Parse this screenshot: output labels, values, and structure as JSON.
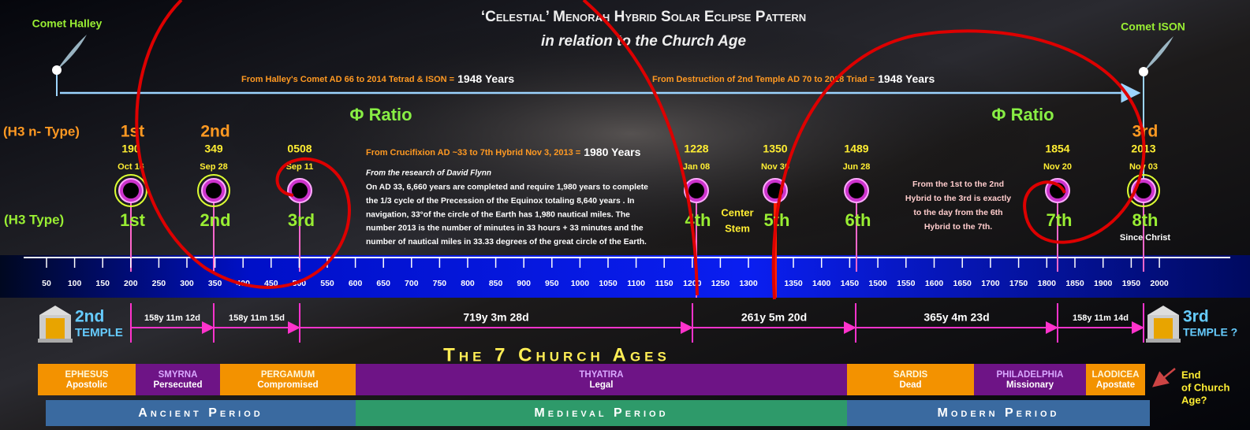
{
  "header": {
    "title": "‘Celestial’ Menorah Hybrid Solar Eclipse Pattern",
    "subtitle": "in relation to the Church Age"
  },
  "comets": [
    "Comet Halley",
    "Comet ISON"
  ],
  "spans": [
    {
      "text": "From Halley's Comet AD 66 to 2014 Tetrad & ISON =",
      "years": "1948 Years"
    },
    {
      "text": "From Destruction of 2nd Temple AD 70 to 2018 Triad =",
      "years": "1948 Years"
    }
  ],
  "phi_labels": [
    "Φ Ratio",
    "Φ Ratio"
  ],
  "row_labels": [
    "(H3 n- Type)",
    "(H3 Type)"
  ],
  "eclipses": [
    {
      "n_label": "1st",
      "year": "190",
      "date": "Oct 16",
      "label": "1st"
    },
    {
      "n_label": "2nd",
      "year": "349",
      "date": "Sep 28",
      "label": "2nd"
    },
    {
      "year": "0508",
      "date": "Sep 11",
      "label": "3rd"
    },
    {
      "year": "1228",
      "date": "Jan 08",
      "label": "4th"
    },
    {
      "year": "1350",
      "date": "Nov 30",
      "label": "5th"
    },
    {
      "year": "1489",
      "date": "Jun 28",
      "label": "6th"
    },
    {
      "year": "1854",
      "date": "Nov 20",
      "label": "7th"
    },
    {
      "n_label": "3rd",
      "year": "2013",
      "date": "Nov 03",
      "label": "8th",
      "note": "Since Christ"
    }
  ],
  "center_stem": [
    "Center",
    "Stem"
  ],
  "crucifixion": {
    "text": "From Crucifixion AD ~33 to 7th Hybrid  Nov 3, 2013 =",
    "years": "1980 Years"
  },
  "research": {
    "source": "From the research of David Flynn",
    "lines": [
      "On AD 33, 6,660 years are completed and require 1,980 years to complete",
      "the 1/3 cycle of the Precession of the Equinox totaling 8,640 years . In",
      "navigation, 33°of the circle of the Earth has 1,980 nautical miles. The",
      "number 2013 is the number of minutes in 33 hours + 33 minutes and the",
      "number of nautical miles in 33.33 degrees of the great circle of the Earth."
    ]
  },
  "hybrid_note": [
    "From the 1st to the 2nd",
    "Hybrid to the 3rd is exactly",
    "to the day from the 6th",
    "Hybrid to the 7th."
  ],
  "axis_ticks": [
    50,
    100,
    150,
    200,
    250,
    300,
    350,
    400,
    450,
    500,
    550,
    600,
    650,
    700,
    750,
    800,
    850,
    900,
    950,
    1000,
    1050,
    1100,
    1150,
    1200,
    1250,
    1300,
    1350,
    1400,
    1450,
    1500,
    1550,
    1600,
    1650,
    1700,
    1750,
    1800,
    1850,
    1900,
    1950,
    2000
  ],
  "intervals": [
    "158y 11m 12d",
    "158y 11m 15d",
    "719y 3m 28d",
    "261y 5m 20d",
    "365y 4m 23d",
    "158y 11m 14d"
  ],
  "temples": [
    {
      "ordinal": "2nd",
      "label": "TEMPLE"
    },
    {
      "ordinal": "3rd",
      "label": "TEMPLE ?"
    }
  ],
  "church_ages_title": "The 7 Church Ages",
  "churches": [
    {
      "name": "EPHESUS",
      "sub": "Apostolic"
    },
    {
      "name": "SMYRNA",
      "sub": "Persecuted"
    },
    {
      "name": "PERGAMUM",
      "sub": "Compromised"
    },
    {
      "name": "THYATIRA",
      "sub": "Legal"
    },
    {
      "name": "SARDIS",
      "sub": "Dead"
    },
    {
      "name": "PHILADELPHIA",
      "sub": "Missionary"
    },
    {
      "name": "LAODICEA",
      "sub": "Apostate"
    }
  ],
  "end_note": [
    "End",
    "of Church",
    "Age?"
  ],
  "periods": [
    "Ancient Period",
    "Medieval Period",
    "Modern Period"
  ]
}
